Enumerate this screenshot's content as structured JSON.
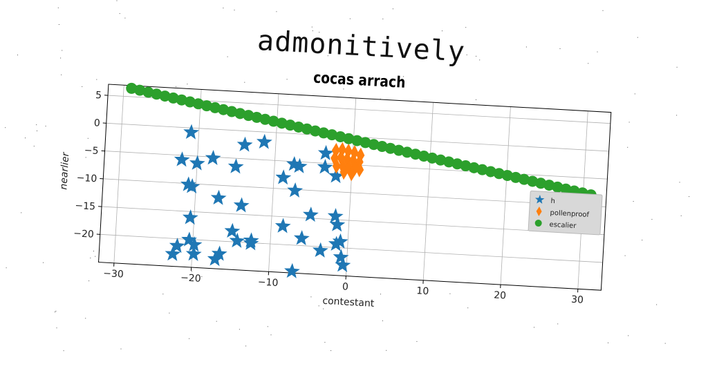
{
  "chart_data": {
    "type": "scatter",
    "title": "admonitively",
    "subtitle": "cocas arrach",
    "xlabel": "contestant",
    "ylabel": "nearlier",
    "xlim": [
      -32,
      33
    ],
    "ylim": [
      -25,
      7
    ],
    "xticks": [
      -30,
      -20,
      -10,
      0,
      10,
      20,
      30
    ],
    "yticks": [
      5,
      0,
      -5,
      -10,
      -15,
      -20
    ],
    "grid": true,
    "legend_position": "right",
    "series": [
      {
        "name": "h",
        "marker": "star",
        "color": "#1f77b4",
        "points": [
          [
            -21,
            -0.8
          ],
          [
            -22,
            -5.8
          ],
          [
            -20,
            -6.3
          ],
          [
            -18,
            -5.2
          ],
          [
            -21,
            -10.2
          ],
          [
            -20.5,
            -10.5
          ],
          [
            -15,
            -6.5
          ],
          [
            -14,
            -2.5
          ],
          [
            -11.5,
            -1.8
          ],
          [
            -17,
            -12.3
          ],
          [
            -14,
            -13.4
          ],
          [
            -20.5,
            -16.1
          ],
          [
            -15,
            -18.1
          ],
          [
            -14.3,
            -19.8
          ],
          [
            -12.5,
            -19.6
          ],
          [
            -12.5,
            -20.1
          ],
          [
            -20.5,
            -20.1
          ],
          [
            -19.8,
            -20.9
          ],
          [
            -22,
            -21.3
          ],
          [
            -19.8,
            -22.6
          ],
          [
            -22.5,
            -22.8
          ],
          [
            -16.5,
            -22.3
          ],
          [
            -17,
            -23.3
          ],
          [
            -8.8,
            -8
          ],
          [
            -7.5,
            -5.5
          ],
          [
            -6.8,
            -5.8
          ],
          [
            -7.2,
            -10.2
          ],
          [
            -8.5,
            -16.7
          ],
          [
            -5,
            -14.4
          ],
          [
            -6,
            -18.7
          ],
          [
            -3.5,
            -20.7
          ],
          [
            -3.5,
            -3.2
          ],
          [
            -3.5,
            -5.7
          ],
          [
            -2,
            -7.2
          ],
          [
            -1.8,
            -14.4
          ],
          [
            -1.5,
            -15.9
          ],
          [
            -1.5,
            -19.4
          ],
          [
            -1,
            -18.9
          ],
          [
            -0.8,
            -21.7
          ],
          [
            -0.5,
            -23.1
          ],
          [
            -7,
            -24.7
          ]
        ]
      },
      {
        "name": "pollenproof",
        "marker": "diamond",
        "color": "#ff7f0e",
        "points": [
          [
            -2.2,
            -2.6
          ],
          [
            -1.4,
            -2.4
          ],
          [
            -0.6,
            -2.6
          ],
          [
            0.2,
            -2.8
          ],
          [
            1.0,
            -3.2
          ],
          [
            -2.3,
            -4.0
          ],
          [
            -1.5,
            -3.8
          ],
          [
            -0.7,
            -4.0
          ],
          [
            0.1,
            -4.2
          ],
          [
            0.9,
            -4.4
          ],
          [
            -2.0,
            -5.4
          ],
          [
            -1.2,
            -5.4
          ],
          [
            -0.4,
            -5.6
          ],
          [
            0.4,
            -5.6
          ],
          [
            1.0,
            -5.8
          ],
          [
            -1.0,
            -6.4
          ],
          [
            0.0,
            -6.6
          ]
        ]
      },
      {
        "name": "escalier",
        "marker": "circle",
        "color": "#2ca02c",
        "line": {
          "x_start": -29,
          "y_start": 6.5,
          "x_end": 31,
          "y_end": -8,
          "count": 56
        }
      }
    ]
  }
}
